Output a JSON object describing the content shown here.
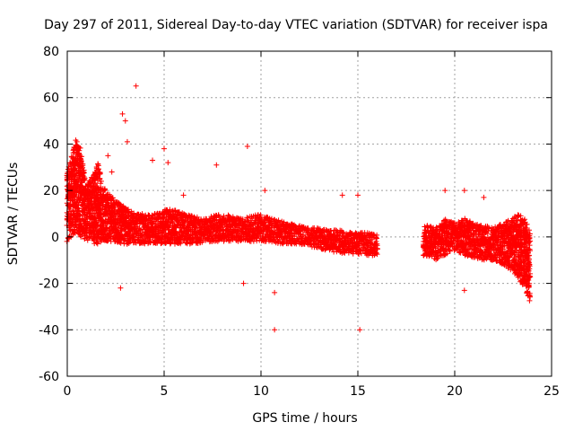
{
  "chart_data": {
    "type": "scatter",
    "title": "Day 297 of 2011, Sidereal Day-to-day VTEC variation (SDTVAR) for receiver ispa",
    "xlabel": "GPS time / hours",
    "ylabel": "SDTVAR / TECUs",
    "xlim": [
      0,
      25
    ],
    "ylim": [
      -60,
      80
    ],
    "xticks": [
      0,
      5,
      10,
      15,
      20,
      25
    ],
    "yticks": [
      -60,
      -40,
      -20,
      0,
      20,
      40,
      60,
      80
    ],
    "xtick_labels": [
      "0",
      "5",
      "10",
      "15",
      "20",
      "25"
    ],
    "ytick_labels": [
      "-60",
      "-40",
      "-20",
      "0",
      "20",
      "40",
      "60",
      "80"
    ],
    "grid": true,
    "marker": "+",
    "color": "#ff0000",
    "series": [
      {
        "name": "SDTVAR",
        "band_envelope": {
          "x": [
            0,
            0.25,
            0.45,
            0.7,
            1.0,
            1.4,
            1.6,
            1.8,
            2.2,
            2.8,
            3.2,
            3.6,
            4.0,
            4.5,
            5.0,
            5.5,
            6.0,
            6.5,
            7.0,
            7.5,
            8.0,
            8.5,
            9.0,
            9.5,
            10.0,
            10.5,
            11.0,
            11.5,
            12.0,
            12.5,
            13.0,
            13.5,
            14.0,
            14.5,
            15.0,
            15.5,
            16.0
          ],
          "low": [
            -2,
            0,
            2,
            0,
            -2,
            -3,
            -3,
            -2,
            -2,
            -3,
            -3,
            -3,
            -3,
            -3,
            -3,
            -3,
            -3,
            -3,
            -3,
            -2,
            -2,
            -2,
            -2,
            -2,
            -2,
            -2,
            -3,
            -3,
            -3,
            -4,
            -5,
            -6,
            -7,
            -7,
            -8,
            -8,
            -8
          ],
          "high": [
            28,
            36,
            42,
            38,
            22,
            28,
            32,
            22,
            18,
            14,
            12,
            10,
            10,
            10,
            12,
            12,
            10,
            9,
            8,
            9,
            10,
            9,
            8,
            9,
            10,
            8,
            7,
            6,
            5,
            4,
            4,
            3,
            3,
            2,
            2,
            2,
            2
          ]
        },
        "band_envelope_2": {
          "x": [
            18.4,
            19.0,
            19.5,
            20.0,
            20.5,
            21.0,
            21.5,
            22.0,
            22.5,
            23.0,
            23.3,
            23.6,
            23.9
          ],
          "low": [
            -8,
            -10,
            -8,
            -6,
            -8,
            -9,
            -10,
            -10,
            -12,
            -15,
            -18,
            -22,
            -28
          ],
          "high": [
            6,
            4,
            8,
            6,
            8,
            6,
            5,
            4,
            6,
            8,
            10,
            8,
            3
          ]
        },
        "outliers": [
          {
            "x": 3.55,
            "y": 65
          },
          {
            "x": 2.85,
            "y": 53
          },
          {
            "x": 3.0,
            "y": 50
          },
          {
            "x": 3.1,
            "y": 41
          },
          {
            "x": 9.3,
            "y": 39
          },
          {
            "x": 5.0,
            "y": 38
          },
          {
            "x": 2.75,
            "y": -22
          },
          {
            "x": 9.1,
            "y": -20
          },
          {
            "x": 10.7,
            "y": -40
          },
          {
            "x": 15.1,
            "y": -40
          },
          {
            "x": 20.5,
            "y": -23
          },
          {
            "x": 10.7,
            "y": -24
          },
          {
            "x": 19.5,
            "y": 20
          },
          {
            "x": 20.5,
            "y": 20
          },
          {
            "x": 7.7,
            "y": 31
          },
          {
            "x": 5.2,
            "y": 32
          },
          {
            "x": 4.4,
            "y": 33
          },
          {
            "x": 2.1,
            "y": 35
          },
          {
            "x": 2.3,
            "y": 28
          },
          {
            "x": 6.0,
            "y": 18
          },
          {
            "x": 10.2,
            "y": 20
          },
          {
            "x": 14.2,
            "y": 18
          },
          {
            "x": 15.0,
            "y": 18
          },
          {
            "x": 21.5,
            "y": 17
          }
        ]
      }
    ]
  }
}
